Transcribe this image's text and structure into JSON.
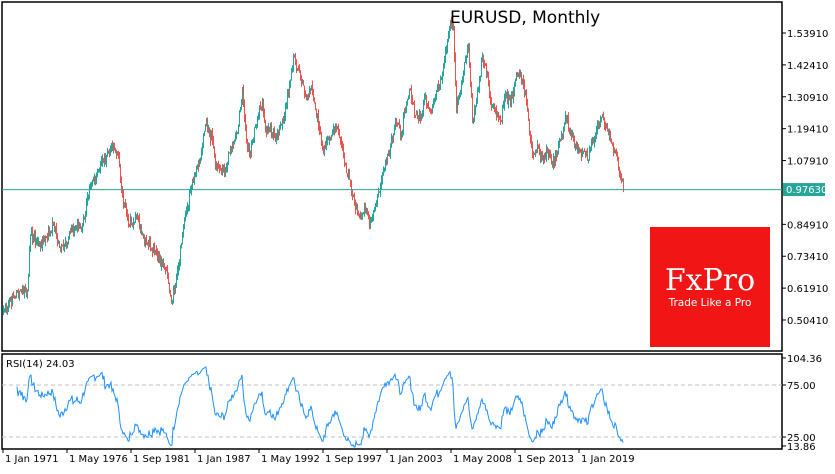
{
  "chart_data": {
    "type": "bar",
    "title": "EURUSD, Monthly",
    "symbol": "EURUSD",
    "timeframe": "Monthly",
    "current_price": "0.97630",
    "price_ticks": [
      "1.53910",
      "1.42410",
      "1.30910",
      "1.19410",
      "1.07910",
      "0.84910",
      "0.73410",
      "0.61910",
      "0.50410"
    ],
    "x_ticks": [
      "1 Jan 1971",
      "1 May 1976",
      "1 Sep 1981",
      "1 Jan 1987",
      "1 May 1992",
      "1 Sep 1997",
      "1 Jan 2003",
      "1 May 2008",
      "1 Sep 2013",
      "1 Jan 2019"
    ],
    "ylim": [
      0.45,
      1.65
    ],
    "grid": false,
    "colors": {
      "up": "#26a69a",
      "down": "#ef5350",
      "rsi": "#1e90ff",
      "price_line": "#26a69a"
    },
    "close_series": [
      [
        "1971-01",
        0.537
      ],
      [
        "1971-08",
        0.576
      ],
      [
        "1972-06",
        0.612
      ],
      [
        "1973-01",
        0.612
      ],
      [
        "1973-04",
        0.811
      ],
      [
        "1974-02",
        0.775
      ],
      [
        "1975-03",
        0.847
      ],
      [
        "1975-10",
        0.757
      ],
      [
        "1976-08",
        0.822
      ],
      [
        "1977-08",
        0.847
      ],
      [
        "1978-02",
        0.955
      ],
      [
        "1978-11",
        1.045
      ],
      [
        "1979-12",
        1.124
      ],
      [
        "1980-07",
        1.11
      ],
      [
        "1980-12",
        0.955
      ],
      [
        "1981-06",
        0.847
      ],
      [
        "1982-01",
        0.883
      ],
      [
        "1982-11",
        0.793
      ],
      [
        "1983-09",
        0.757
      ],
      [
        "1984-07",
        0.684
      ],
      [
        "1985-01",
        0.576
      ],
      [
        "1985-07",
        0.684
      ],
      [
        "1986-03",
        0.883
      ],
      [
        "1986-11",
        1.009
      ],
      [
        "1987-06",
        1.081
      ],
      [
        "1987-11",
        1.207
      ],
      [
        "1988-06",
        1.153
      ],
      [
        "1988-09",
        1.063
      ],
      [
        "1989-02",
        1.045
      ],
      [
        "1989-07",
        1.045
      ],
      [
        "1989-12",
        1.117
      ],
      [
        "1990-08",
        1.207
      ],
      [
        "1990-12",
        1.334
      ],
      [
        "1991-04",
        1.153
      ],
      [
        "1991-08",
        1.099
      ],
      [
        "1992-01",
        1.207
      ],
      [
        "1992-08",
        1.298
      ],
      [
        "1992-11",
        1.189
      ],
      [
        "1993-04",
        1.207
      ],
      [
        "1993-09",
        1.153
      ],
      [
        "1994-02",
        1.207
      ],
      [
        "1994-08",
        1.279
      ],
      [
        "1995-03",
        1.453
      ],
      [
        "1995-10",
        1.37
      ],
      [
        "1996-03",
        1.315
      ],
      [
        "1996-10",
        1.334
      ],
      [
        "1997-04",
        1.207
      ],
      [
        "1997-08",
        1.117
      ],
      [
        "1998-02",
        1.153
      ],
      [
        "1998-09",
        1.207
      ],
      [
        "1999-02",
        1.153
      ],
      [
        "1999-07",
        1.063
      ],
      [
        "2000-02",
        0.955
      ],
      [
        "2000-08",
        0.883
      ],
      [
        "2001-03",
        0.901
      ],
      [
        "2001-08",
        0.857
      ],
      [
        "2002-01",
        0.919
      ],
      [
        "2002-06",
        0.991
      ],
      [
        "2002-11",
        1.081
      ],
      [
        "2003-04",
        1.135
      ],
      [
        "2003-09",
        1.225
      ],
      [
        "2004-02",
        1.171
      ],
      [
        "2004-07",
        1.261
      ],
      [
        "2004-12",
        1.334
      ],
      [
        "2005-05",
        1.243
      ],
      [
        "2005-10",
        1.225
      ],
      [
        "2006-03",
        1.316
      ],
      [
        "2006-08",
        1.261
      ],
      [
        "2007-01",
        1.315
      ],
      [
        "2007-06",
        1.37
      ],
      [
        "2007-11",
        1.478
      ],
      [
        "2008-04",
        1.586
      ],
      [
        "2008-07",
        1.55
      ],
      [
        "2008-10",
        1.261
      ],
      [
        "2009-02",
        1.334
      ],
      [
        "2009-07",
        1.442
      ],
      [
        "2009-10",
        1.496
      ],
      [
        "2010-02",
        1.225
      ],
      [
        "2010-08",
        1.334
      ],
      [
        "2010-12",
        1.46
      ],
      [
        "2011-05",
        1.388
      ],
      [
        "2011-08",
        1.298
      ],
      [
        "2012-01",
        1.261
      ],
      [
        "2012-06",
        1.225
      ],
      [
        "2012-11",
        1.315
      ],
      [
        "2013-04",
        1.279
      ],
      [
        "2013-09",
        1.37
      ],
      [
        "2014-02",
        1.388
      ],
      [
        "2014-05",
        1.352
      ],
      [
        "2014-09",
        1.261
      ],
      [
        "2014-12",
        1.153
      ],
      [
        "2015-03",
        1.099
      ],
      [
        "2015-07",
        1.135
      ],
      [
        "2015-12",
        1.081
      ],
      [
        "2016-05",
        1.117
      ],
      [
        "2016-10",
        1.063
      ],
      [
        "2017-01",
        1.099
      ],
      [
        "2017-06",
        1.153
      ],
      [
        "2017-11",
        1.243
      ],
      [
        "2018-04",
        1.189
      ],
      [
        "2018-09",
        1.135
      ],
      [
        "2019-02",
        1.117
      ],
      [
        "2019-07",
        1.099
      ],
      [
        "2019-10",
        1.081
      ],
      [
        "2020-02",
        1.153
      ],
      [
        "2020-08",
        1.207
      ],
      [
        "2021-01",
        1.225
      ],
      [
        "2021-05",
        1.189
      ],
      [
        "2021-10",
        1.135
      ],
      [
        "2022-03",
        1.081
      ],
      [
        "2022-06",
        1.027
      ],
      [
        "2022-09",
        0.976
      ]
    ],
    "indicator": {
      "label": "RSI(14) 24.03",
      "name": "RSI(14)",
      "value": 24.03,
      "levels": [
        75,
        25
      ],
      "ticks": [
        "104.36",
        "75.00",
        "25.00",
        "13.86"
      ],
      "ylim": [
        13.86,
        104.36
      ]
    }
  },
  "logo": {
    "brand": "FxPro",
    "tagline": "Trade Like a Pro",
    "color": "#f21515"
  }
}
